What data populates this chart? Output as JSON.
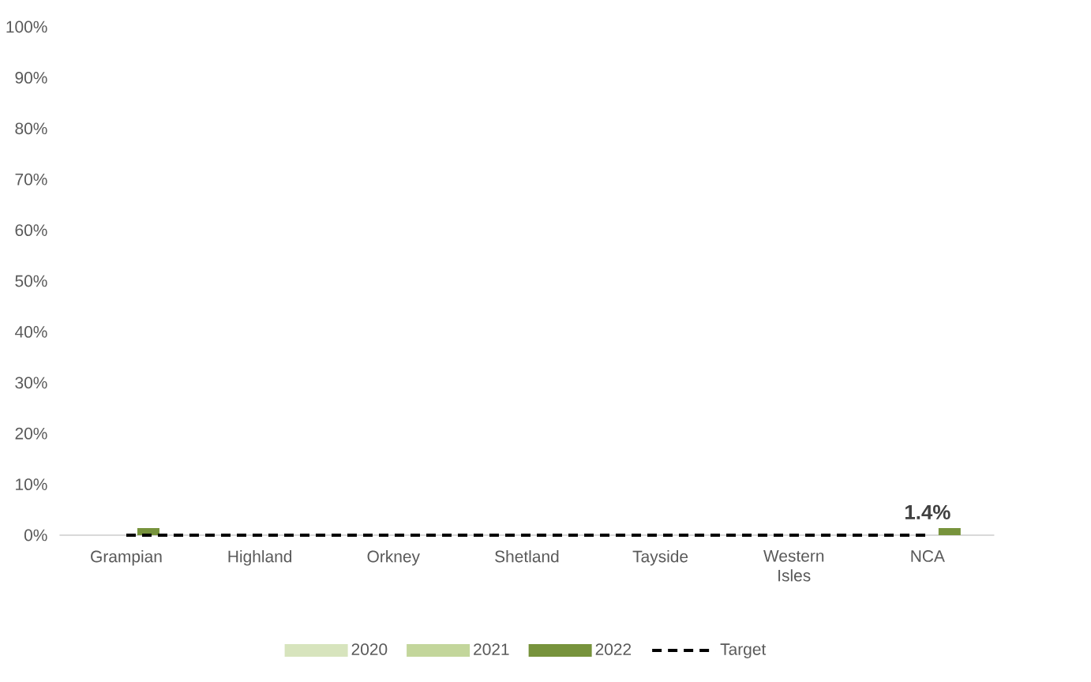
{
  "chart_data": {
    "type": "bar",
    "categories": [
      "Grampian",
      "Highland",
      "Orkney",
      "Shetland",
      "Tayside",
      "Western Isles",
      "NCA"
    ],
    "series": [
      {
        "name": "2020",
        "color": "#d7e4bd",
        "values": [
          0,
          0,
          0,
          0,
          0,
          0,
          0
        ]
      },
      {
        "name": "2021",
        "color": "#c3d69b",
        "values": [
          0,
          0,
          0,
          0,
          0,
          0,
          0
        ]
      },
      {
        "name": "2022",
        "color": "#77933c",
        "values": [
          1.4,
          0,
          0,
          0,
          0,
          0,
          1.4
        ],
        "value_labels": [
          null,
          null,
          null,
          null,
          null,
          null,
          "1.4%"
        ]
      },
      {
        "name": "Target",
        "type": "line",
        "color": "#000000",
        "line_style": "dashed",
        "values": [
          0,
          0,
          0,
          0,
          0,
          0,
          0
        ]
      }
    ],
    "ylim": [
      0,
      100
    ],
    "yticks": [
      {
        "value": 0,
        "label": "0%"
      },
      {
        "value": 10,
        "label": "10%"
      },
      {
        "value": 20,
        "label": "20%"
      },
      {
        "value": 30,
        "label": "30%"
      },
      {
        "value": 40,
        "label": "40%"
      },
      {
        "value": 50,
        "label": "50%"
      },
      {
        "value": 60,
        "label": "60%"
      },
      {
        "value": 70,
        "label": "70%"
      },
      {
        "value": 80,
        "label": "80%"
      },
      {
        "value": 90,
        "label": "90%"
      },
      {
        "value": 100,
        "label": "100%"
      }
    ],
    "grid": false,
    "legend": "bottom"
  }
}
